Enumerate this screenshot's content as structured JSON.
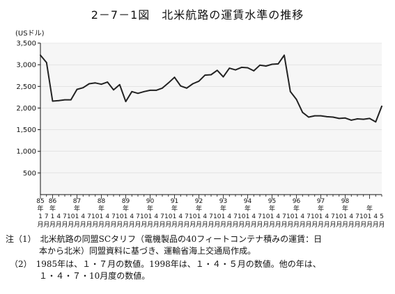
{
  "title": "2－7－1図　北米航路の運賃水準の推移",
  "chart_data": {
    "type": "line",
    "ylabel": "(USドル)",
    "ylim": [
      0,
      3500
    ],
    "yticks": [
      500,
      1000,
      1500,
      2000,
      2500,
      3000,
      3500
    ],
    "ytick_labels": [
      "500",
      "1,000",
      "1,500",
      "2,000",
      "2,500",
      "3,000",
      "3,500"
    ],
    "year_labels": [
      "85",
      "86",
      "87",
      "88",
      "89",
      "90",
      "91",
      "92",
      "93",
      "94",
      "95",
      "96",
      "97",
      "98"
    ],
    "year_suffix": "年",
    "month_suffix": "月",
    "month_ticks": [
      "1",
      "7",
      "1",
      "4",
      "7",
      "10",
      "1",
      "4",
      "7",
      "10",
      "1",
      "4",
      "7",
      "10",
      "1",
      "4",
      "7",
      "10",
      "1",
      "4",
      "7",
      "10",
      "1",
      "4",
      "7",
      "10",
      "1",
      "4",
      "7",
      "10",
      "1",
      "4",
      "7",
      "10",
      "1",
      "4",
      "7",
      "10",
      "1",
      "4",
      "7",
      "10",
      "1",
      "4",
      "7",
      "10",
      "1",
      "4",
      "7",
      "10",
      "1",
      "4",
      "7",
      "10",
      "1",
      "4",
      "5"
    ],
    "series": [
      {
        "color": "#222222",
        "values": [
          3220,
          3050,
          2160,
          2170,
          2190,
          2190,
          2430,
          2470,
          2560,
          2580,
          2550,
          2600,
          2420,
          2540,
          2150,
          2380,
          2340,
          2380,
          2410,
          2410,
          2460,
          2580,
          2710,
          2510,
          2460,
          2560,
          2620,
          2760,
          2770,
          2870,
          2720,
          2920,
          2880,
          2940,
          2930,
          2860,
          2990,
          2970,
          3010,
          3020,
          3220,
          2380,
          2200,
          1900,
          1790,
          1820,
          1820,
          1800,
          1790,
          1760,
          1770,
          1720,
          1750,
          1740,
          1760,
          1680,
          2040
        ]
      }
    ]
  },
  "notes": [
    "注（1）　北米航路の同盟SCタリフ（電機製品の40フィートコンテナ積みの運賃：日",
    "　　　　本から北米）同盟資料に基づき、運輸省海上交通局作成。",
    "　（2）　1985年は、１・７月の数値。1998年は、１・４・５月の数値。他の年は、",
    "　　　　１・４・７・10月度の数値。"
  ]
}
